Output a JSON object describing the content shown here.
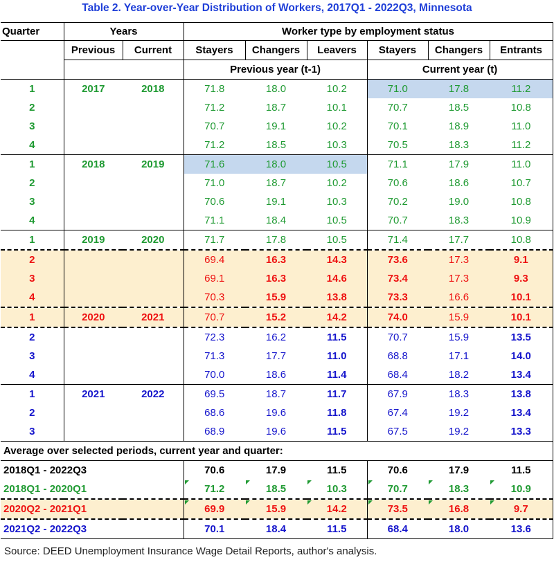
{
  "title": "Table 2. Year-over-Year Distribution of Workers, 2017Q1 - 2022Q3, Minnesota",
  "header": {
    "quarter": "Quarter",
    "years": "Years",
    "previous": "Previous",
    "current": "Current",
    "worker_type": "Worker type by employment status",
    "prev_year": "Previous year (t-1)",
    "cur_year": "Current year (t)",
    "stayers": "Stayers",
    "changers": "Changers",
    "leavers": "Leavers",
    "entrants": "Entrants"
  },
  "rows": [
    {
      "q": "1",
      "prev": "2017",
      "cur": "2018",
      "v": [
        "71.8",
        "18.0",
        "10.2",
        "71.0",
        "17.8",
        "11.2"
      ]
    },
    {
      "q": "2",
      "prev": "",
      "cur": "",
      "v": [
        "71.2",
        "18.7",
        "10.1",
        "70.7",
        "18.5",
        "10.8"
      ]
    },
    {
      "q": "3",
      "prev": "",
      "cur": "",
      "v": [
        "70.7",
        "19.1",
        "10.2",
        "70.1",
        "18.9",
        "11.0"
      ]
    },
    {
      "q": "4",
      "prev": "",
      "cur": "",
      "v": [
        "71.2",
        "18.5",
        "10.3",
        "70.5",
        "18.3",
        "11.2"
      ]
    },
    {
      "q": "1",
      "prev": "2018",
      "cur": "2019",
      "v": [
        "71.6",
        "18.0",
        "10.5",
        "71.1",
        "17.9",
        "11.0"
      ]
    },
    {
      "q": "2",
      "prev": "",
      "cur": "",
      "v": [
        "71.0",
        "18.7",
        "10.2",
        "70.6",
        "18.6",
        "10.7"
      ]
    },
    {
      "q": "3",
      "prev": "",
      "cur": "",
      "v": [
        "70.6",
        "19.1",
        "10.3",
        "70.2",
        "19.0",
        "10.8"
      ]
    },
    {
      "q": "4",
      "prev": "",
      "cur": "",
      "v": [
        "71.1",
        "18.4",
        "10.5",
        "70.7",
        "18.3",
        "10.9"
      ]
    },
    {
      "q": "1",
      "prev": "2019",
      "cur": "2020",
      "v": [
        "71.7",
        "17.8",
        "10.5",
        "71.4",
        "17.7",
        "10.8"
      ]
    },
    {
      "q": "2",
      "prev": "",
      "cur": "",
      "v": [
        "69.4",
        "16.3",
        "14.3",
        "73.6",
        "17.3",
        "9.1"
      ]
    },
    {
      "q": "3",
      "prev": "",
      "cur": "",
      "v": [
        "69.1",
        "16.3",
        "14.6",
        "73.4",
        "17.3",
        "9.3"
      ]
    },
    {
      "q": "4",
      "prev": "",
      "cur": "",
      "v": [
        "70.3",
        "15.9",
        "13.8",
        "73.3",
        "16.6",
        "10.1"
      ]
    },
    {
      "q": "1",
      "prev": "2020",
      "cur": "2021",
      "v": [
        "70.7",
        "15.2",
        "14.2",
        "74.0",
        "15.9",
        "10.1"
      ]
    },
    {
      "q": "2",
      "prev": "",
      "cur": "",
      "v": [
        "72.3",
        "16.2",
        "11.5",
        "70.7",
        "15.9",
        "13.5"
      ]
    },
    {
      "q": "3",
      "prev": "",
      "cur": "",
      "v": [
        "71.3",
        "17.7",
        "11.0",
        "68.8",
        "17.1",
        "14.0"
      ]
    },
    {
      "q": "4",
      "prev": "",
      "cur": "",
      "v": [
        "70.0",
        "18.6",
        "11.4",
        "68.4",
        "18.2",
        "13.4"
      ]
    },
    {
      "q": "1",
      "prev": "2021",
      "cur": "2022",
      "v": [
        "69.5",
        "18.7",
        "11.7",
        "67.9",
        "18.3",
        "13.8"
      ]
    },
    {
      "q": "2",
      "prev": "",
      "cur": "",
      "v": [
        "68.6",
        "19.6",
        "11.8",
        "67.4",
        "19.2",
        "13.4"
      ]
    },
    {
      "q": "3",
      "prev": "",
      "cur": "",
      "v": [
        "68.9",
        "19.6",
        "11.5",
        "67.5",
        "19.2",
        "13.3"
      ]
    }
  ],
  "avg_title": "Average over selected periods, current year and quarter:",
  "avgs": [
    {
      "label": "2018Q1 - 2022Q3",
      "v": [
        "70.6",
        "17.9",
        "11.5",
        "70.6",
        "17.9",
        "11.5"
      ]
    },
    {
      "label": "2018Q1 - 2020Q1",
      "v": [
        "71.2",
        "18.5",
        "10.3",
        "70.7",
        "18.3",
        "10.9"
      ]
    },
    {
      "label": "2020Q2 - 2021Q1",
      "v": [
        "69.9",
        "15.9",
        "14.2",
        "73.5",
        "16.8",
        "9.7"
      ]
    },
    {
      "label": "2021Q2 - 2022Q3",
      "v": [
        "70.1",
        "18.4",
        "11.5",
        "68.4",
        "18.0",
        "13.6"
      ]
    }
  ],
  "source": "Source: DEED Unemployment Insurance Wage Detail Reports, author's analysis.",
  "colors": {
    "green": "#1f9a32",
    "red": "#ee1111",
    "blue": "#1515cc",
    "title": "#1f3fd8",
    "highlight_blue": "#c5d8ee",
    "highlight_orange": "#fdefcf"
  }
}
